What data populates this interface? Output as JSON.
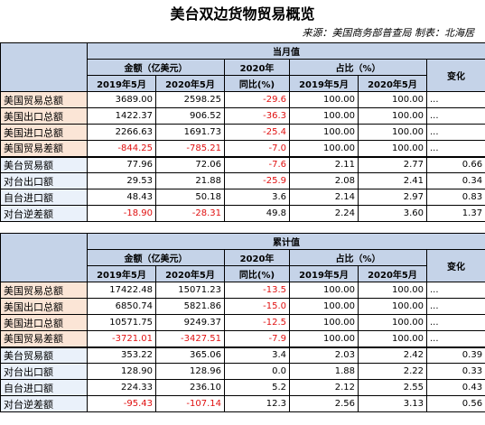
{
  "title": "美台双边货物贸易概览",
  "source": "来源：美国商务部普查局 制表：北海居",
  "headers": {
    "current_month": "当月值",
    "cumulative": "累计值",
    "amount": "金额（亿美元）",
    "year2020": "2020年",
    "yoy": "同比(%)",
    "share": "占比（%）",
    "change": "变化",
    "may2019": "2019年5月",
    "may2020": "2020年5月"
  },
  "colors": {
    "negative": "#e01010",
    "header_bg": "#c5d3e8",
    "label_bg": "#fbe5d6"
  },
  "monthly": [
    {
      "label": "美国贸易总额",
      "v2019": "3689.00",
      "v2020": "2598.25",
      "yoy": "-29.6",
      "s2019": "100.00",
      "s2020": "100.00",
      "chg": "..."
    },
    {
      "label": "美国出口总额",
      "v2019": "1422.37",
      "v2020": "906.52",
      "yoy": "-36.3",
      "s2019": "100.00",
      "s2020": "100.00",
      "chg": "..."
    },
    {
      "label": "美国进口总额",
      "v2019": "2266.63",
      "v2020": "1691.73",
      "yoy": "-25.4",
      "s2019": "100.00",
      "s2020": "100.00",
      "chg": "..."
    },
    {
      "label": "美国贸易差额",
      "v2019": "-844.25",
      "v2020": "-785.21",
      "yoy": "-7.0",
      "s2019": "100.00",
      "s2020": "100.00",
      "chg": "..."
    },
    {
      "label": "美台贸易额",
      "v2019": "77.96",
      "v2020": "72.06",
      "yoy": "-7.6",
      "s2019": "2.11",
      "s2020": "2.77",
      "chg": "0.66"
    },
    {
      "label": "对台出口额",
      "v2019": "29.53",
      "v2020": "21.88",
      "yoy": "-25.9",
      "s2019": "2.08",
      "s2020": "2.41",
      "chg": "0.34"
    },
    {
      "label": "自台进口额",
      "v2019": "48.43",
      "v2020": "50.18",
      "yoy": "3.6",
      "s2019": "2.14",
      "s2020": "2.97",
      "chg": "0.83"
    },
    {
      "label": "对台逆差额",
      "v2019": "-18.90",
      "v2020": "-28.31",
      "yoy": "49.8",
      "s2019": "2.24",
      "s2020": "3.60",
      "chg": "1.37"
    }
  ],
  "cumulative": [
    {
      "label": "美国贸易总额",
      "v2019": "17422.48",
      "v2020": "15071.23",
      "yoy": "-13.5",
      "s2019": "100.00",
      "s2020": "100.00",
      "chg": "..."
    },
    {
      "label": "美国出口总额",
      "v2019": "6850.74",
      "v2020": "5821.86",
      "yoy": "-15.0",
      "s2019": "100.00",
      "s2020": "100.00",
      "chg": "..."
    },
    {
      "label": "美国进口总额",
      "v2019": "10571.75",
      "v2020": "9249.37",
      "yoy": "-12.5",
      "s2019": "100.00",
      "s2020": "100.00",
      "chg": "..."
    },
    {
      "label": "美国贸易差额",
      "v2019": "-3721.01",
      "v2020": "-3427.51",
      "yoy": "-7.9",
      "s2019": "100.00",
      "s2020": "100.00",
      "chg": "..."
    },
    {
      "label": "美台贸易额",
      "v2019": "353.22",
      "v2020": "365.06",
      "yoy": "3.4",
      "s2019": "2.03",
      "s2020": "2.42",
      "chg": "0.39"
    },
    {
      "label": "对台出口额",
      "v2019": "128.90",
      "v2020": "128.96",
      "yoy": "0.0",
      "s2019": "1.88",
      "s2020": "2.22",
      "chg": "0.33"
    },
    {
      "label": "自台进口额",
      "v2019": "224.33",
      "v2020": "236.10",
      "yoy": "5.2",
      "s2019": "2.12",
      "s2020": "2.55",
      "chg": "0.43"
    },
    {
      "label": "对台逆差额",
      "v2019": "-95.43",
      "v2020": "-107.14",
      "yoy": "12.3",
      "s2019": "2.56",
      "s2020": "3.13",
      "chg": "0.56"
    }
  ]
}
